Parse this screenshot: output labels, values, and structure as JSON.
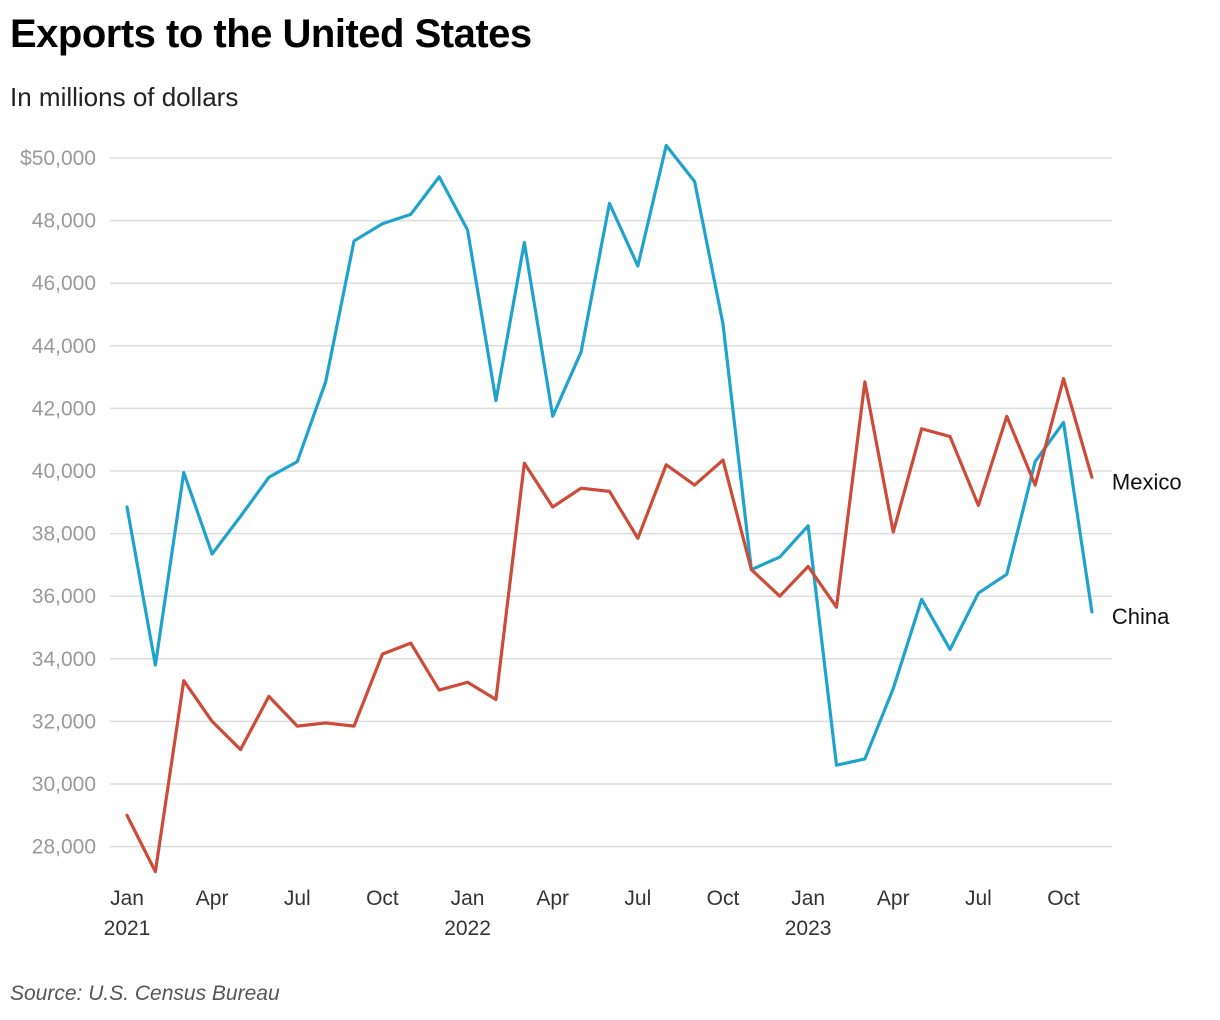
{
  "chart_data": {
    "type": "line",
    "title": "Exports to the United States",
    "subtitle": "In millions of dollars",
    "source": "Source: U.S. Census Bureau",
    "x": [
      "2021-01",
      "2021-02",
      "2021-03",
      "2021-04",
      "2021-05",
      "2021-06",
      "2021-07",
      "2021-08",
      "2021-09",
      "2021-10",
      "2021-11",
      "2021-12",
      "2022-01",
      "2022-02",
      "2022-03",
      "2022-04",
      "2022-05",
      "2022-06",
      "2022-07",
      "2022-08",
      "2022-09",
      "2022-10",
      "2022-11",
      "2022-12",
      "2023-01",
      "2023-02",
      "2023-03",
      "2023-04",
      "2023-05",
      "2023-06",
      "2023-07",
      "2023-08",
      "2023-09",
      "2023-10",
      "2023-11"
    ],
    "x_ticks": [
      {
        "month": 0,
        "label": "Jan",
        "sublabel": "2021"
      },
      {
        "month": 3,
        "label": "Apr",
        "sublabel": ""
      },
      {
        "month": 6,
        "label": "Jul",
        "sublabel": ""
      },
      {
        "month": 9,
        "label": "Oct",
        "sublabel": ""
      },
      {
        "month": 12,
        "label": "Jan",
        "sublabel": "2022"
      },
      {
        "month": 15,
        "label": "Apr",
        "sublabel": ""
      },
      {
        "month": 18,
        "label": "Jul",
        "sublabel": ""
      },
      {
        "month": 21,
        "label": "Oct",
        "sublabel": ""
      },
      {
        "month": 24,
        "label": "Jan",
        "sublabel": "2023"
      },
      {
        "month": 27,
        "label": "Apr",
        "sublabel": ""
      },
      {
        "month": 30,
        "label": "Jul",
        "sublabel": ""
      },
      {
        "month": 33,
        "label": "Oct",
        "sublabel": ""
      }
    ],
    "y_ticks": [
      {
        "value": 50000,
        "label": "$50,000"
      },
      {
        "value": 48000,
        "label": "48,000"
      },
      {
        "value": 46000,
        "label": "46,000"
      },
      {
        "value": 44000,
        "label": "44,000"
      },
      {
        "value": 42000,
        "label": "42,000"
      },
      {
        "value": 40000,
        "label": "40,000"
      },
      {
        "value": 38000,
        "label": "38,000"
      },
      {
        "value": 36000,
        "label": "36,000"
      },
      {
        "value": 34000,
        "label": "34,000"
      },
      {
        "value": 32000,
        "label": "32,000"
      },
      {
        "value": 30000,
        "label": "30,000"
      },
      {
        "value": 28000,
        "label": "28,000"
      }
    ],
    "ylim": [
      27000,
      50600
    ],
    "grid": true,
    "legend": "direct labels at line ends",
    "series": [
      {
        "name": "China",
        "color": "#1fa3cc",
        "values": [
          38850,
          33800,
          39950,
          37350,
          38550,
          39800,
          40300,
          42850,
          47350,
          47900,
          48200,
          49400,
          47700,
          42250,
          47300,
          41750,
          43800,
          48550,
          46550,
          50400,
          49250,
          44700,
          36850,
          37250,
          38250,
          30600,
          30800,
          33050,
          35900,
          34300,
          36100,
          36700,
          40300,
          41550,
          35500
        ]
      },
      {
        "name": "Mexico",
        "color": "#cc4b39",
        "values": [
          29000,
          27200,
          33300,
          32000,
          31100,
          32800,
          31850,
          31950,
          31850,
          34150,
          34500,
          33000,
          33250,
          32700,
          40250,
          38850,
          39450,
          39350,
          37850,
          40200,
          39550,
          40350,
          36850,
          36000,
          36950,
          35650,
          42850,
          38050,
          41350,
          41100,
          38900,
          41750,
          39550,
          42950,
          39800
        ]
      }
    ]
  },
  "colors": {
    "grid": "#dddddd",
    "y_tick_text": "#999999",
    "x_tick_text": "#333333"
  }
}
